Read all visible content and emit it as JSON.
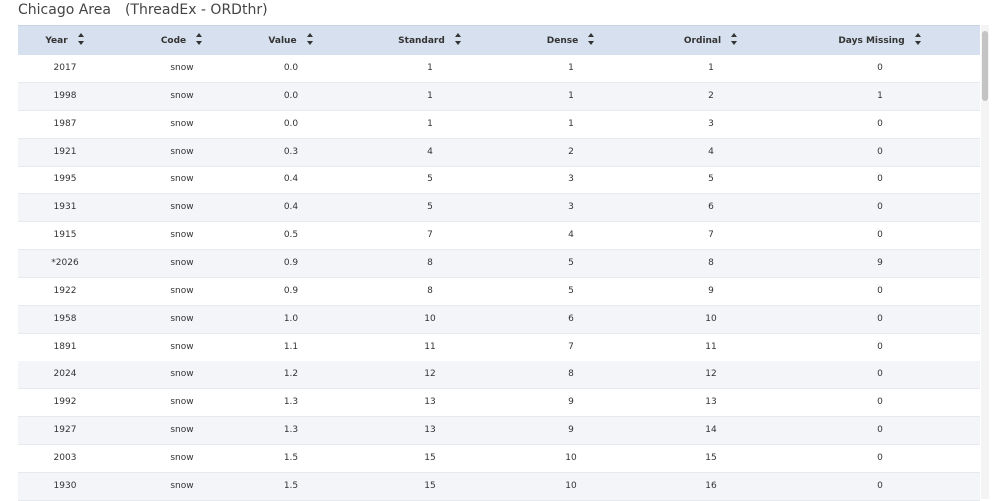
{
  "header": {
    "title": "Chicago Area",
    "subtitle": "(ThreadEx - ORDthr)"
  },
  "table": {
    "columns": [
      "Year",
      "Code",
      "Value",
      "Standard",
      "Dense",
      "Ordinal",
      "Days Missing"
    ],
    "rows": [
      [
        "2017",
        "snow",
        "0.0",
        "1",
        "1",
        "1",
        "0"
      ],
      [
        "1998",
        "snow",
        "0.0",
        "1",
        "1",
        "2",
        "1"
      ],
      [
        "1987",
        "snow",
        "0.0",
        "1",
        "1",
        "3",
        "0"
      ],
      [
        "1921",
        "snow",
        "0.3",
        "4",
        "2",
        "4",
        "0"
      ],
      [
        "1995",
        "snow",
        "0.4",
        "5",
        "3",
        "5",
        "0"
      ],
      [
        "1931",
        "snow",
        "0.4",
        "5",
        "3",
        "6",
        "0"
      ],
      [
        "1915",
        "snow",
        "0.5",
        "7",
        "4",
        "7",
        "0"
      ],
      [
        "*2026",
        "snow",
        "0.9",
        "8",
        "5",
        "8",
        "9"
      ],
      [
        "1922",
        "snow",
        "0.9",
        "8",
        "5",
        "9",
        "0"
      ],
      [
        "1958",
        "snow",
        "1.0",
        "10",
        "6",
        "10",
        "0"
      ],
      [
        "1891",
        "snow",
        "1.1",
        "11",
        "7",
        "11",
        "0"
      ],
      [
        "2024",
        "snow",
        "1.2",
        "12",
        "8",
        "12",
        "0"
      ],
      [
        "1992",
        "snow",
        "1.3",
        "13",
        "9",
        "13",
        "0"
      ],
      [
        "1927",
        "snow",
        "1.3",
        "13",
        "9",
        "14",
        "0"
      ],
      [
        "2003",
        "snow",
        "1.5",
        "15",
        "10",
        "15",
        "0"
      ],
      [
        "1930",
        "snow",
        "1.5",
        "15",
        "10",
        "16",
        "0"
      ]
    ]
  }
}
